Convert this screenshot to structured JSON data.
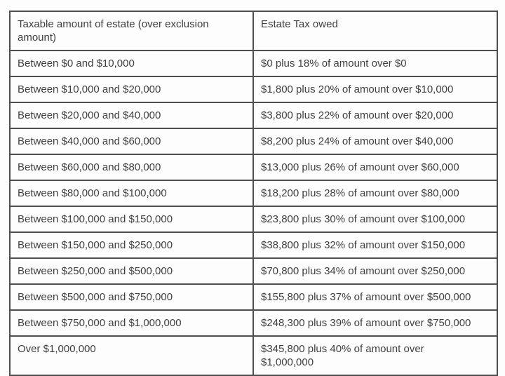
{
  "colors": {
    "border": "#4f4f4f",
    "text": "#3f3f3f",
    "background": "#ffffff"
  },
  "chart_data": {
    "type": "table",
    "columns": [
      "Taxable amount of estate (over exclusion amount)",
      "Estate Tax owed"
    ],
    "rows": [
      [
        "Between $0 and $10,000",
        "$0 plus 18% of amount over $0"
      ],
      [
        "Between $10,000 and $20,000",
        "$1,800 plus 20% of amount over $10,000"
      ],
      [
        "Between $20,000 and $40,000",
        "$3,800 plus 22% of amount over $20,000"
      ],
      [
        "Between $40,000 and $60,000",
        "$8,200 plus 24% of amount over $40,000"
      ],
      [
        "Between $60,000 and $80,000",
        "$13,000 plus 26% of amount over $60,000"
      ],
      [
        "Between $80,000 and $100,000",
        "$18,200 plus 28% of amount over $80,000"
      ],
      [
        "Between $100,000 and $150,000",
        "$23,800 plus 30% of amount over $100,000"
      ],
      [
        "Between $150,000 and $250,000",
        "$38,800 plus 32% of amount over $150,000"
      ],
      [
        "Between $250,000 and $500,000",
        "$70,800 plus 34% of amount over $250,000"
      ],
      [
        "Between $500,000 and $750,000",
        "$155,800 plus 37% of amount over $500,000"
      ],
      [
        "Between $750,000 and $1,000,000",
        "$248,300 plus 39% of amount over $750,000"
      ],
      [
        "Over $1,000,000",
        "$345,800 plus 40% of amount over $1,000,000"
      ]
    ]
  }
}
